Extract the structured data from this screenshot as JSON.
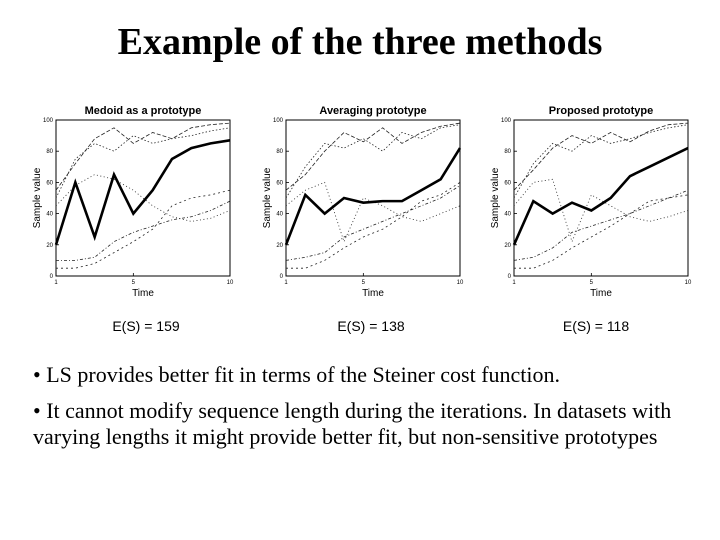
{
  "title": "Example of the three methods",
  "chart_data": [
    {
      "type": "line",
      "title": "Medoid as a prototype",
      "xlabel": "Time",
      "ylabel": "Sample value",
      "xlim": [
        1,
        10
      ],
      "ylim": [
        0,
        100
      ],
      "xticks": [
        1,
        5,
        10
      ],
      "yticks": [
        0,
        20,
        40,
        60,
        80,
        100
      ],
      "x": [
        1,
        2,
        3,
        4,
        5,
        6,
        7,
        8,
        9,
        10
      ],
      "series": [
        {
          "name": "prototype",
          "highlight": true,
          "values": [
            20,
            60,
            25,
            65,
            40,
            55,
            75,
            82,
            85,
            87
          ]
        },
        {
          "name": "sample 1",
          "values": [
            50,
            75,
            85,
            80,
            90,
            85,
            88,
            90,
            93,
            95
          ]
        },
        {
          "name": "sample 2",
          "values": [
            55,
            72,
            88,
            95,
            85,
            92,
            88,
            95,
            97,
            98
          ]
        },
        {
          "name": "sample 3",
          "values": [
            45,
            58,
            65,
            62,
            55,
            45,
            38,
            35,
            37,
            42
          ]
        },
        {
          "name": "sample 4",
          "values": [
            10,
            10,
            12,
            22,
            28,
            32,
            36,
            38,
            42,
            48
          ]
        },
        {
          "name": "sample 5",
          "values": [
            5,
            5,
            8,
            15,
            22,
            30,
            45,
            50,
            52,
            55
          ]
        }
      ]
    },
    {
      "type": "line",
      "title": "Averaging prototype",
      "xlabel": "Time",
      "ylabel": "Sample value",
      "xlim": [
        1,
        10
      ],
      "ylim": [
        0,
        100
      ],
      "xticks": [
        1,
        5,
        10
      ],
      "yticks": [
        0,
        20,
        40,
        60,
        80,
        100
      ],
      "x": [
        1,
        2,
        3,
        4,
        5,
        6,
        7,
        8,
        9,
        10
      ],
      "series": [
        {
          "name": "prototype",
          "highlight": true,
          "values": [
            20,
            52,
            40,
            50,
            47,
            48,
            48,
            55,
            62,
            82
          ]
        },
        {
          "name": "sample 1",
          "values": [
            50,
            70,
            85,
            82,
            88,
            80,
            92,
            88,
            95,
            97
          ]
        },
        {
          "name": "sample 2",
          "values": [
            55,
            65,
            80,
            92,
            86,
            95,
            85,
            92,
            96,
            98
          ]
        },
        {
          "name": "sample 3",
          "values": [
            45,
            55,
            60,
            22,
            50,
            45,
            38,
            35,
            40,
            45
          ]
        },
        {
          "name": "sample 4",
          "values": [
            10,
            12,
            15,
            25,
            30,
            35,
            40,
            45,
            50,
            58
          ]
        },
        {
          "name": "sample 5",
          "values": [
            5,
            5,
            10,
            18,
            25,
            30,
            38,
            48,
            52,
            60
          ]
        }
      ]
    },
    {
      "type": "line",
      "title": "Proposed prototype",
      "xlabel": "Time",
      "ylabel": "Sample value",
      "xlim": [
        1,
        10
      ],
      "ylim": [
        0,
        100
      ],
      "xticks": [
        1,
        5,
        10
      ],
      "yticks": [
        0,
        20,
        40,
        60,
        80,
        100
      ],
      "x": [
        1,
        2,
        3,
        4,
        5,
        6,
        7,
        8,
        9,
        10
      ],
      "series": [
        {
          "name": "prototype",
          "highlight": true,
          "values": [
            20,
            48,
            40,
            47,
            42,
            50,
            64,
            70,
            76,
            82
          ]
        },
        {
          "name": "sample 1",
          "values": [
            50,
            72,
            85,
            80,
            90,
            85,
            88,
            92,
            95,
            97
          ]
        },
        {
          "name": "sample 2",
          "values": [
            55,
            68,
            82,
            90,
            85,
            92,
            86,
            93,
            97,
            98
          ]
        },
        {
          "name": "sample 3",
          "values": [
            45,
            60,
            62,
            22,
            52,
            45,
            38,
            35,
            38,
            42
          ]
        },
        {
          "name": "sample 4",
          "values": [
            10,
            12,
            18,
            28,
            32,
            36,
            40,
            45,
            50,
            55
          ]
        },
        {
          "name": "sample 5",
          "values": [
            5,
            5,
            10,
            18,
            25,
            32,
            40,
            48,
            50,
            52
          ]
        }
      ]
    }
  ],
  "cost_labels": [
    "E(S) = 159",
    "E(S) = 138",
    "E(S) = 118"
  ],
  "bullets": [
    "• LS provides better fit in terms of the Steiner cost function.",
    "• It cannot modify sequence length during the iterations. In datasets with varying lengths it might provide better fit, but non-sensitive prototypes"
  ]
}
